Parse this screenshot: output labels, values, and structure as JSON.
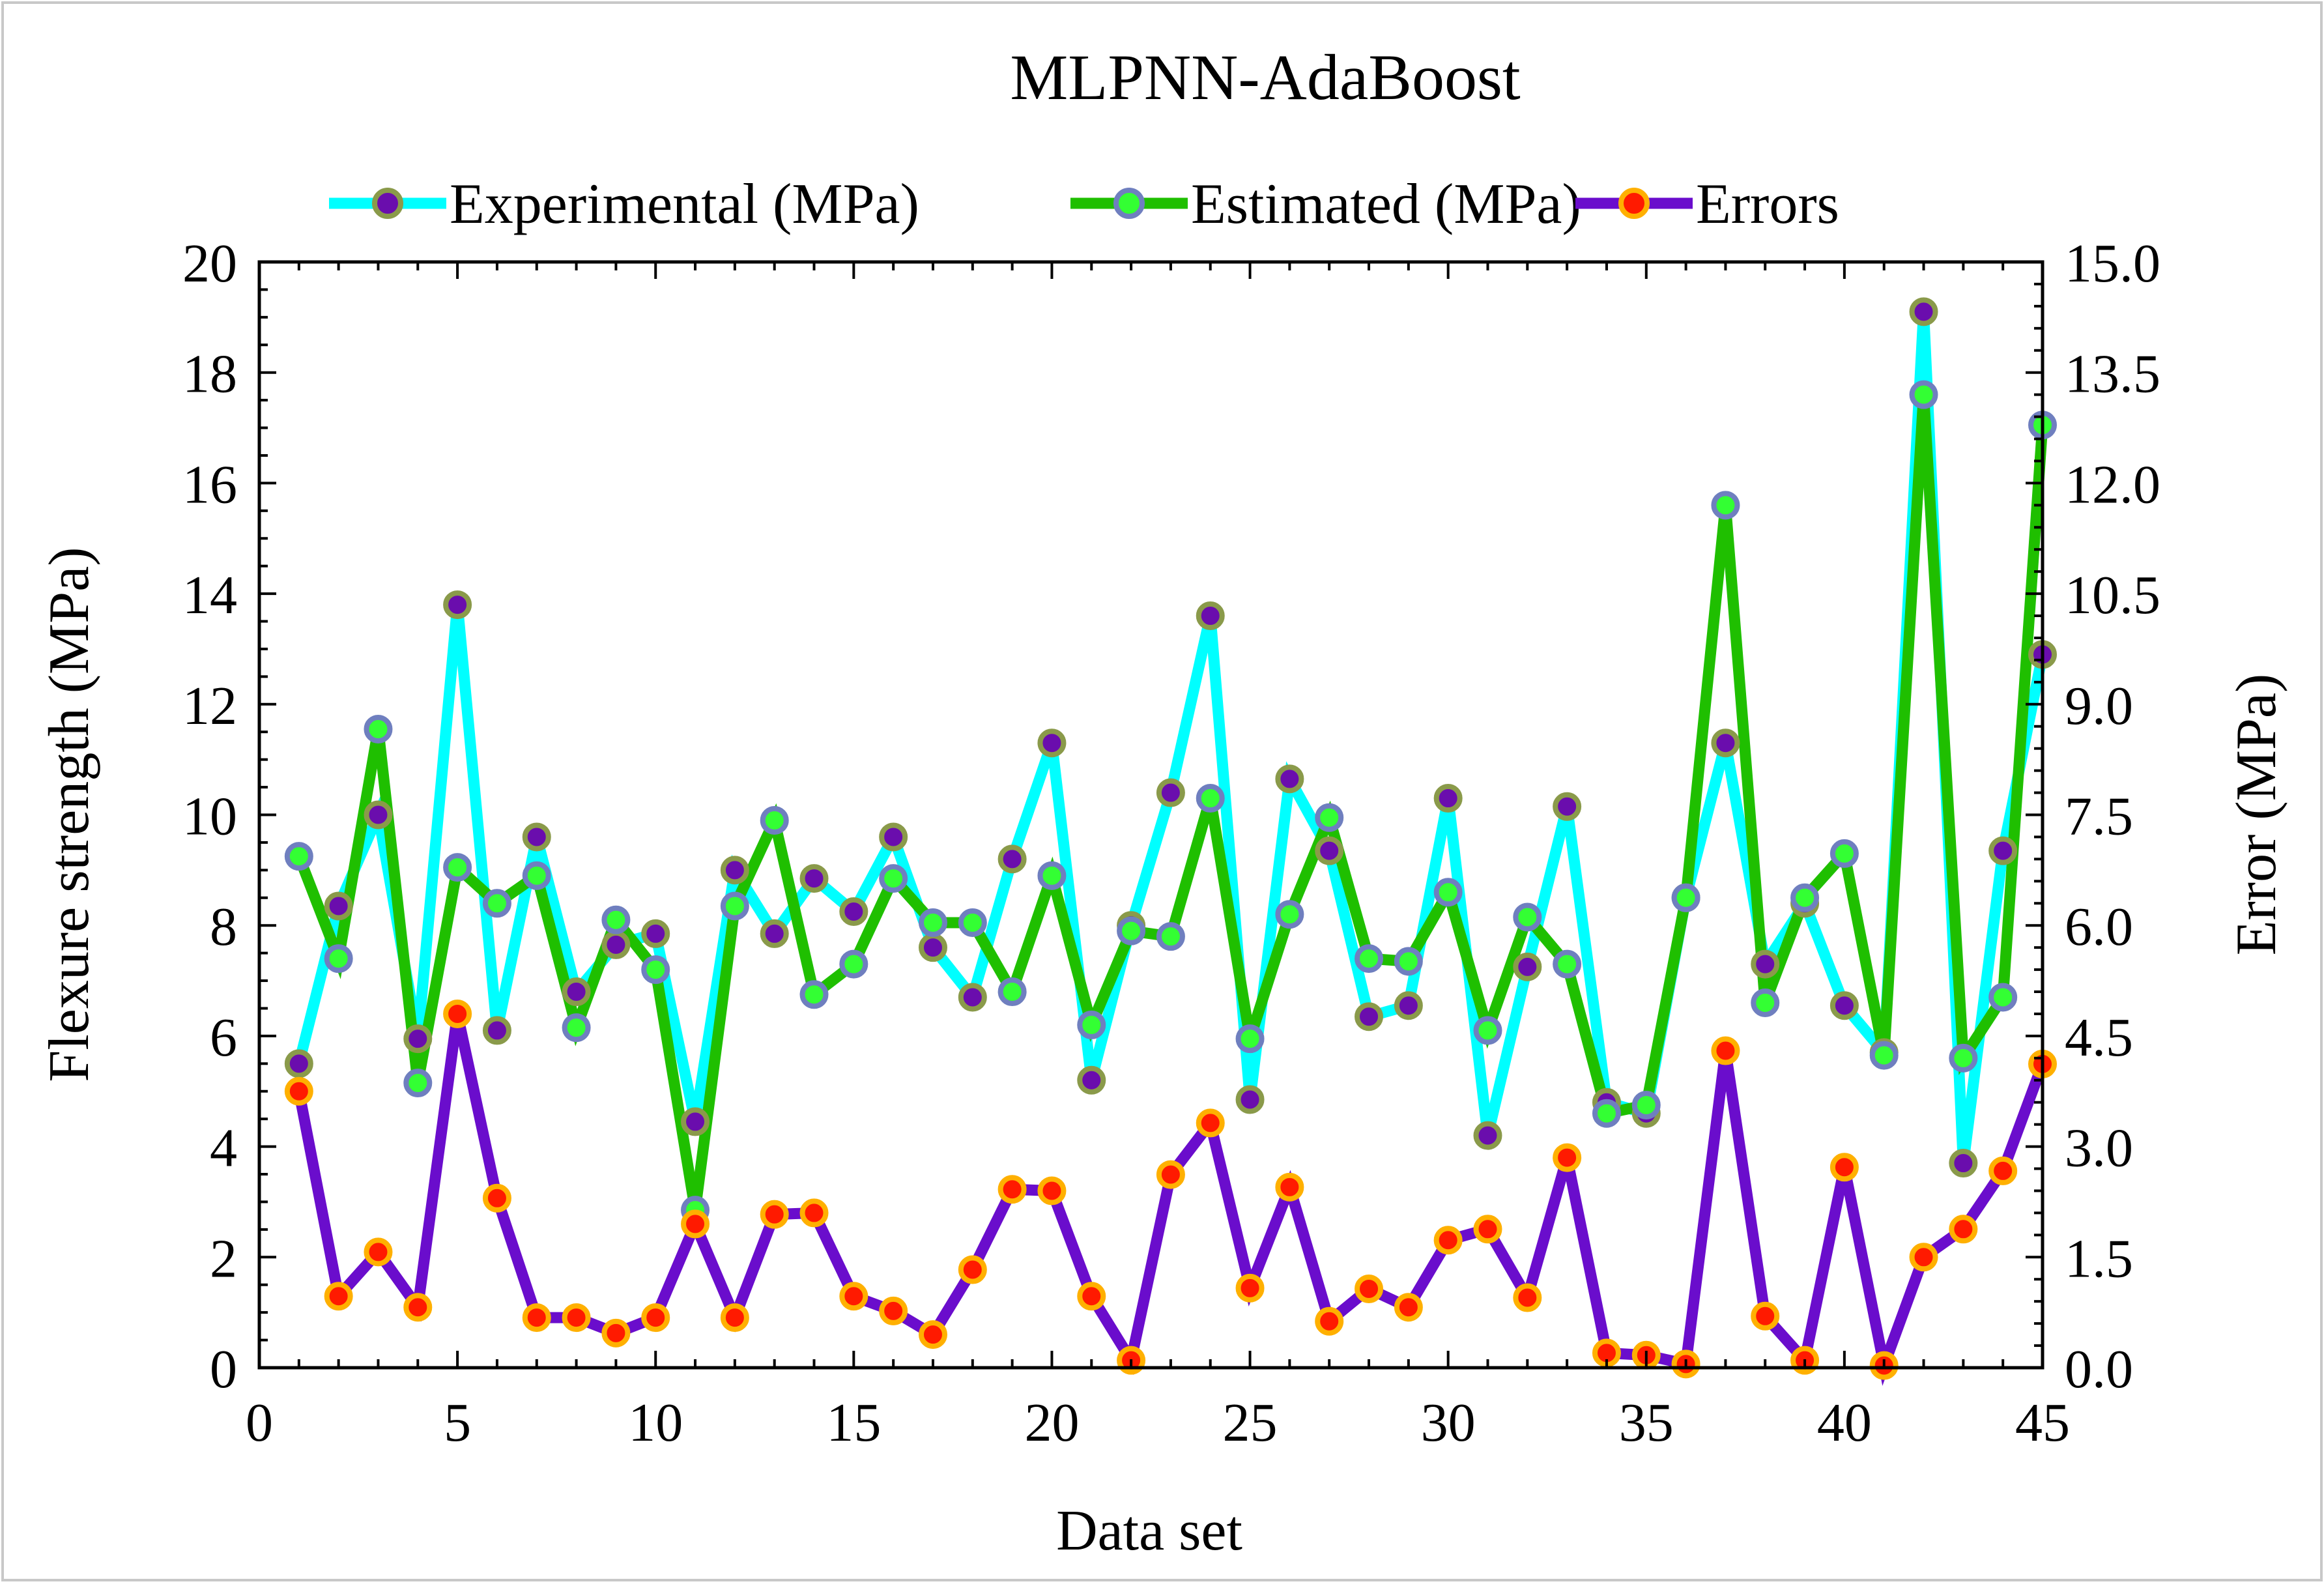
{
  "chart_data": {
    "type": "line",
    "title": "MLPNN-AdaBoost",
    "xlabel": "Data set",
    "ylabel": "Flexure strength (MPa)",
    "y2label": "Error (MPa)",
    "xlim": [
      0,
      45
    ],
    "ylim": [
      0,
      20
    ],
    "y2lim": [
      0,
      15
    ],
    "xticks": [
      "0",
      "5",
      "10",
      "15",
      "20",
      "25",
      "30",
      "35",
      "40",
      "45"
    ],
    "yticks": [
      "0",
      "2",
      "4",
      "6",
      "8",
      "10",
      "12",
      "14",
      "16",
      "18",
      "20"
    ],
    "y2ticks": [
      "0.0",
      "1.5",
      "3.0",
      "4.5",
      "6.0",
      "7.5",
      "9.0",
      "10.5",
      "12.0",
      "13.5",
      "15.0"
    ],
    "legend_position": "top",
    "grid": false,
    "x": [
      1,
      2,
      3,
      4,
      5,
      6,
      7,
      8,
      9,
      10,
      11,
      12,
      13,
      14,
      15,
      16,
      17,
      18,
      19,
      20,
      21,
      22,
      23,
      24,
      25,
      26,
      27,
      28,
      29,
      30,
      31,
      32,
      33,
      34,
      35,
      36,
      37,
      38,
      39,
      40,
      41,
      42,
      43,
      44,
      45
    ],
    "series": [
      {
        "name": "Experimental (MPa)",
        "axis": "left",
        "line_color": "#00FFFF",
        "marker_fill": "#6A0DAD",
        "marker_edge": "#8A9A4A",
        "values": [
          5.5,
          8.35,
          10.0,
          5.95,
          13.8,
          6.1,
          9.6,
          6.8,
          7.65,
          7.85,
          4.45,
          9.0,
          7.85,
          8.85,
          8.25,
          9.6,
          7.6,
          6.7,
          9.2,
          11.3,
          5.2,
          8.0,
          10.4,
          13.6,
          4.85,
          10.65,
          9.35,
          6.35,
          6.55,
          10.3,
          4.2,
          7.25,
          10.15,
          4.8,
          4.6,
          8.5,
          11.3,
          7.3,
          8.4,
          6.55,
          5.7,
          19.1,
          3.7,
          9.35,
          12.9
        ]
      },
      {
        "name": "Estimated (MPa)",
        "axis": "left",
        "line_color": "#1FBF00",
        "marker_fill": "#33FF33",
        "marker_edge": "#6F7FBF",
        "values": [
          9.25,
          7.4,
          11.55,
          5.15,
          9.05,
          8.4,
          8.9,
          6.15,
          8.1,
          7.2,
          2.85,
          8.35,
          9.9,
          6.75,
          7.3,
          8.85,
          8.05,
          8.05,
          6.8,
          8.9,
          6.2,
          7.9,
          7.8,
          10.3,
          5.95,
          8.2,
          9.95,
          7.4,
          7.35,
          8.6,
          6.1,
          8.15,
          7.3,
          4.6,
          4.75,
          8.5,
          15.6,
          6.6,
          8.5,
          9.3,
          5.65,
          17.6,
          5.6,
          6.7,
          17.05
        ]
      },
      {
        "name": "Errors",
        "axis": "right",
        "line_color": "#6A0DCC",
        "marker_fill": "#FF1A00",
        "marker_edge": "#FFB000",
        "values": [
          3.75,
          0.97,
          1.57,
          0.82,
          4.8,
          2.3,
          0.68,
          0.68,
          0.47,
          0.68,
          1.95,
          0.68,
          2.08,
          2.1,
          0.97,
          0.77,
          0.45,
          1.33,
          2.42,
          2.4,
          0.97,
          0.1,
          2.62,
          3.32,
          1.08,
          2.45,
          0.63,
          1.07,
          0.82,
          1.73,
          1.88,
          0.95,
          2.85,
          0.2,
          0.17,
          0.05,
          4.3,
          0.7,
          0.1,
          2.72,
          0.03,
          1.5,
          1.88,
          2.67,
          4.12
        ]
      }
    ]
  }
}
